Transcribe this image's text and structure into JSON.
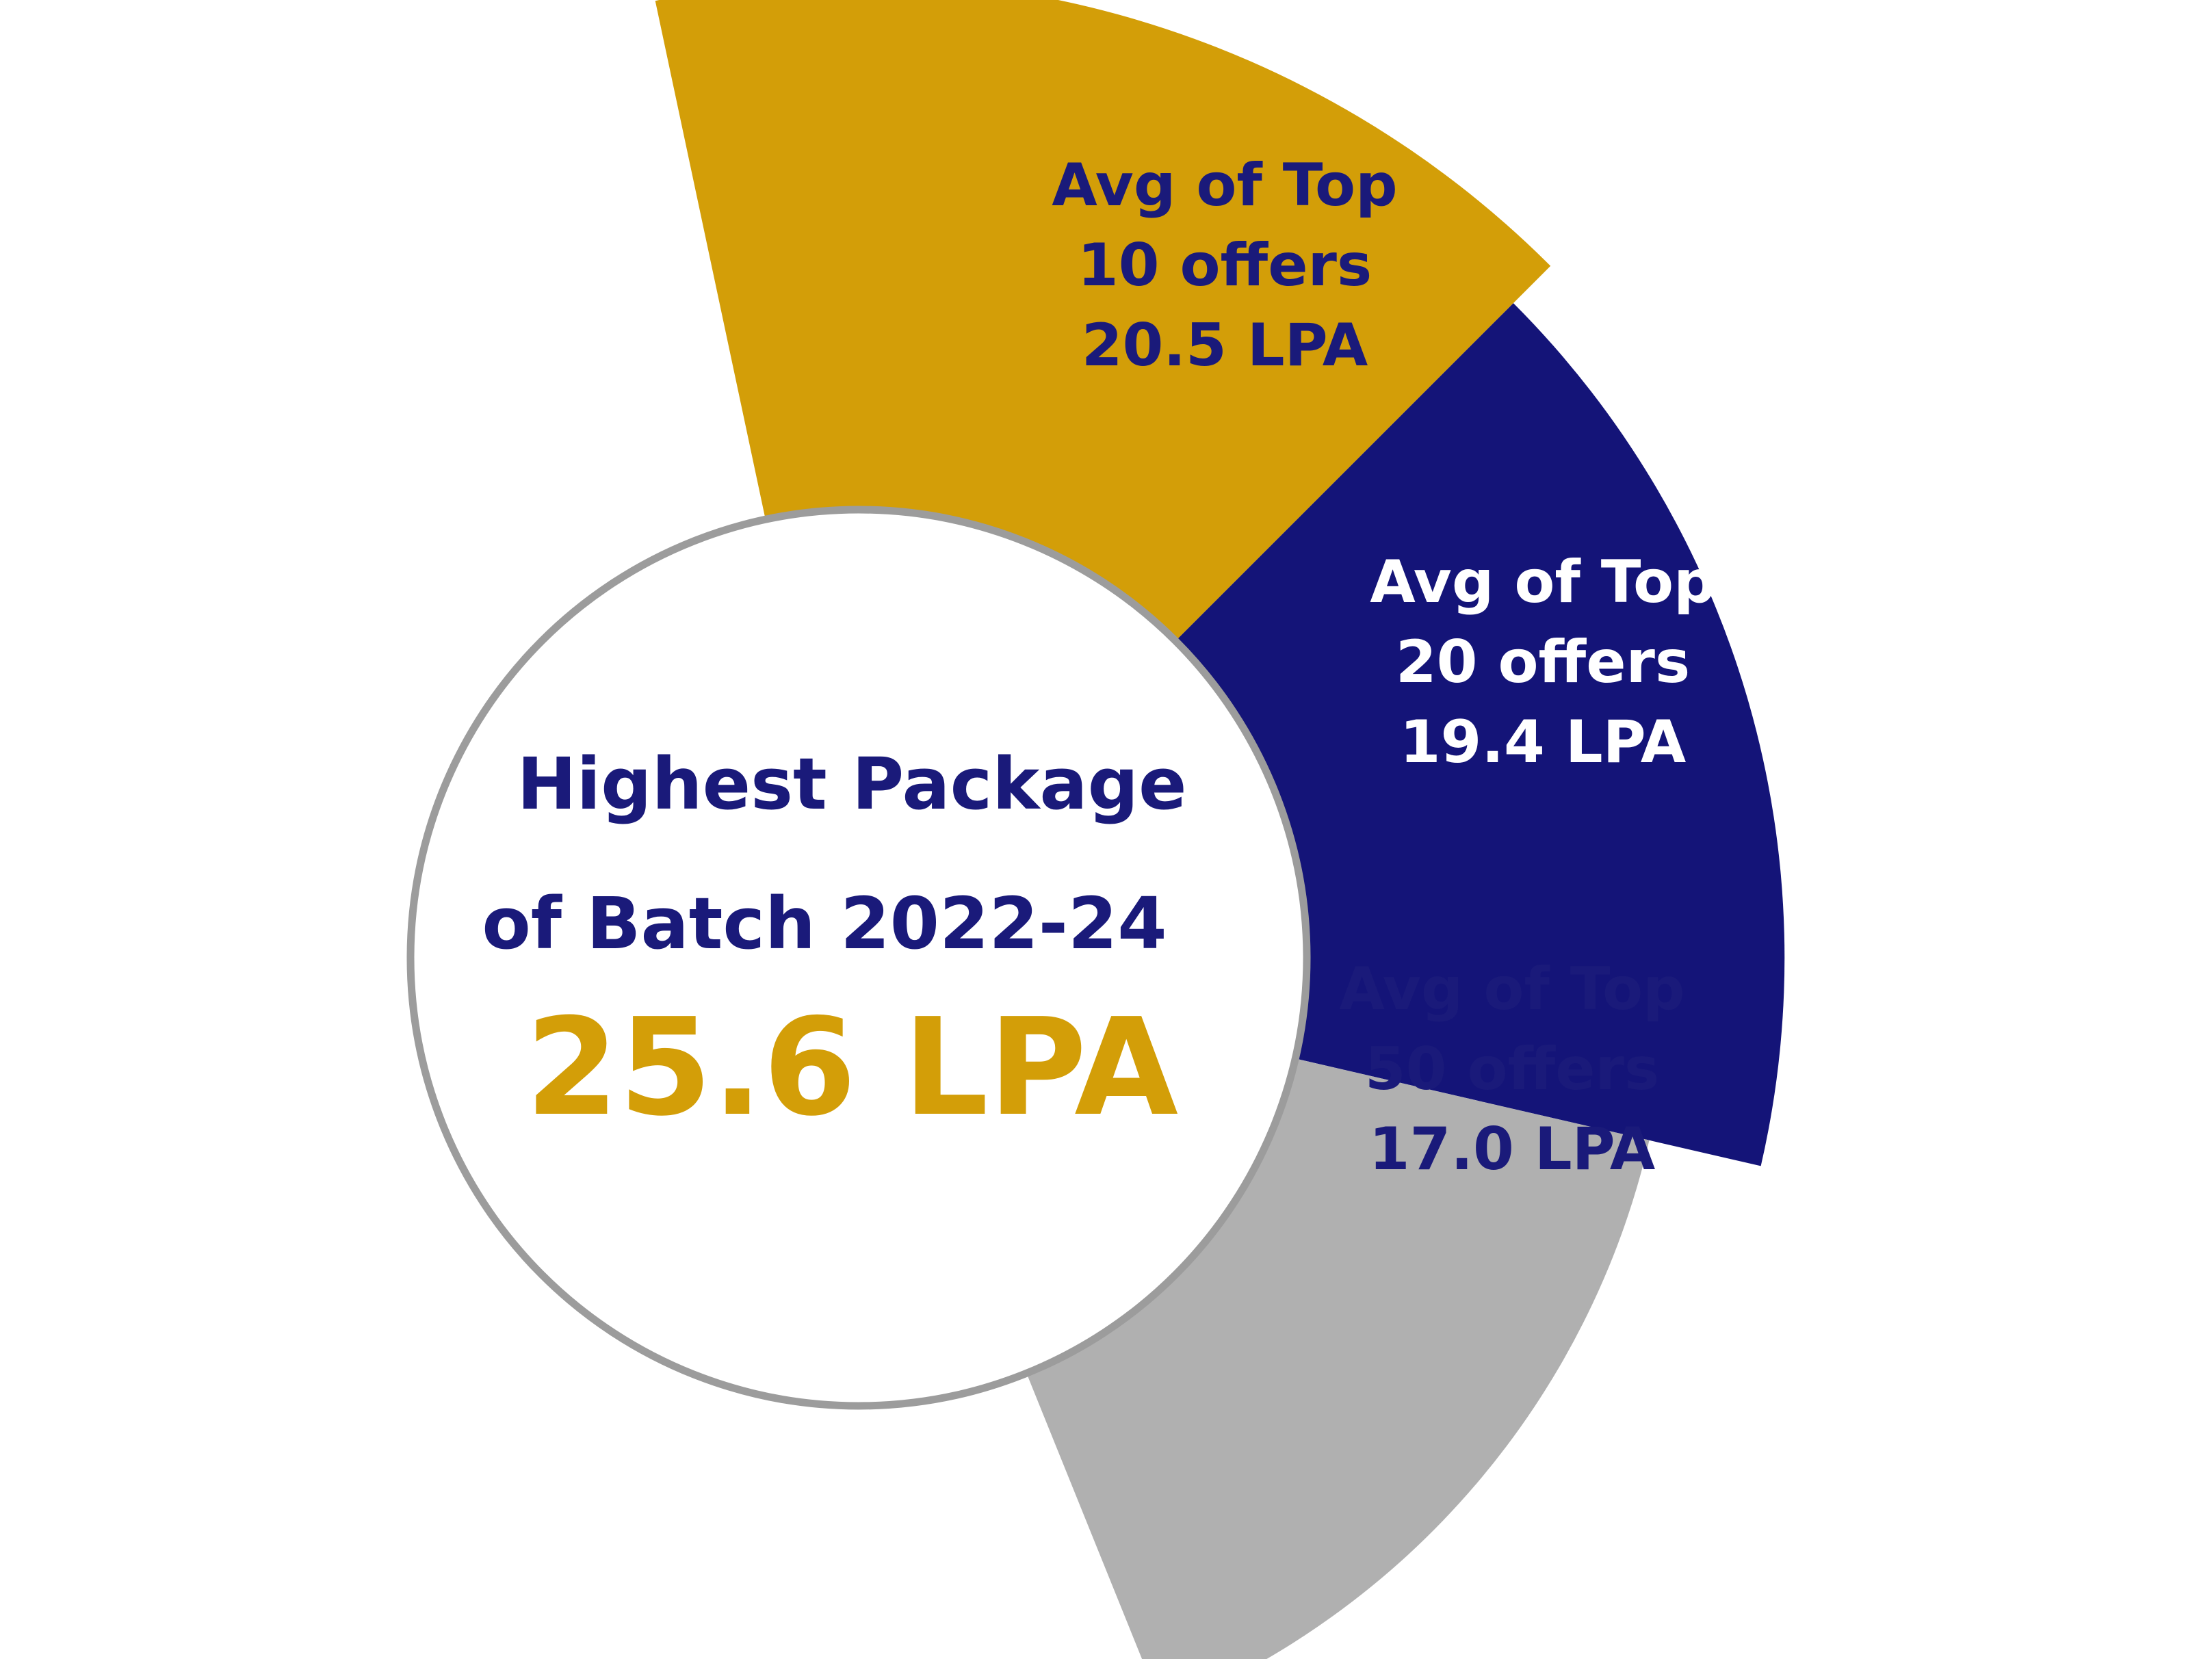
{
  "chart_data": {
    "type": "pie",
    "center": {
      "line1": "Highest Package",
      "line2": "of Batch 2022-24",
      "value": "25.6 LPA"
    },
    "segments": [
      {
        "lines": [
          "Avg of Top",
          "10 offers",
          "20.5 LPA"
        ],
        "category": "Top 10 offers",
        "value": 20.5,
        "unit": "LPA",
        "color": "#D39E08",
        "label_color": "#1A1A7A"
      },
      {
        "lines": [
          "Avg of Top",
          "20 offers",
          "19.4 LPA"
        ],
        "category": "Top 20 offers",
        "value": 19.4,
        "unit": "LPA",
        "color": "#141478",
        "label_color": "#FFFFFF"
      },
      {
        "lines": [
          "Avg of Top",
          "50 offers",
          "17.0 LPA"
        ],
        "category": "Top 50 offers",
        "value": 17.0,
        "unit": "LPA",
        "color": "#B0B0B0",
        "label_color": "#1A1A7A"
      }
    ],
    "colors": {
      "text_primary": "#1A1A7A",
      "value_highlight": "#D39E08",
      "center_fill": "#FFFFFF",
      "center_border": "#9C9C9C"
    }
  }
}
